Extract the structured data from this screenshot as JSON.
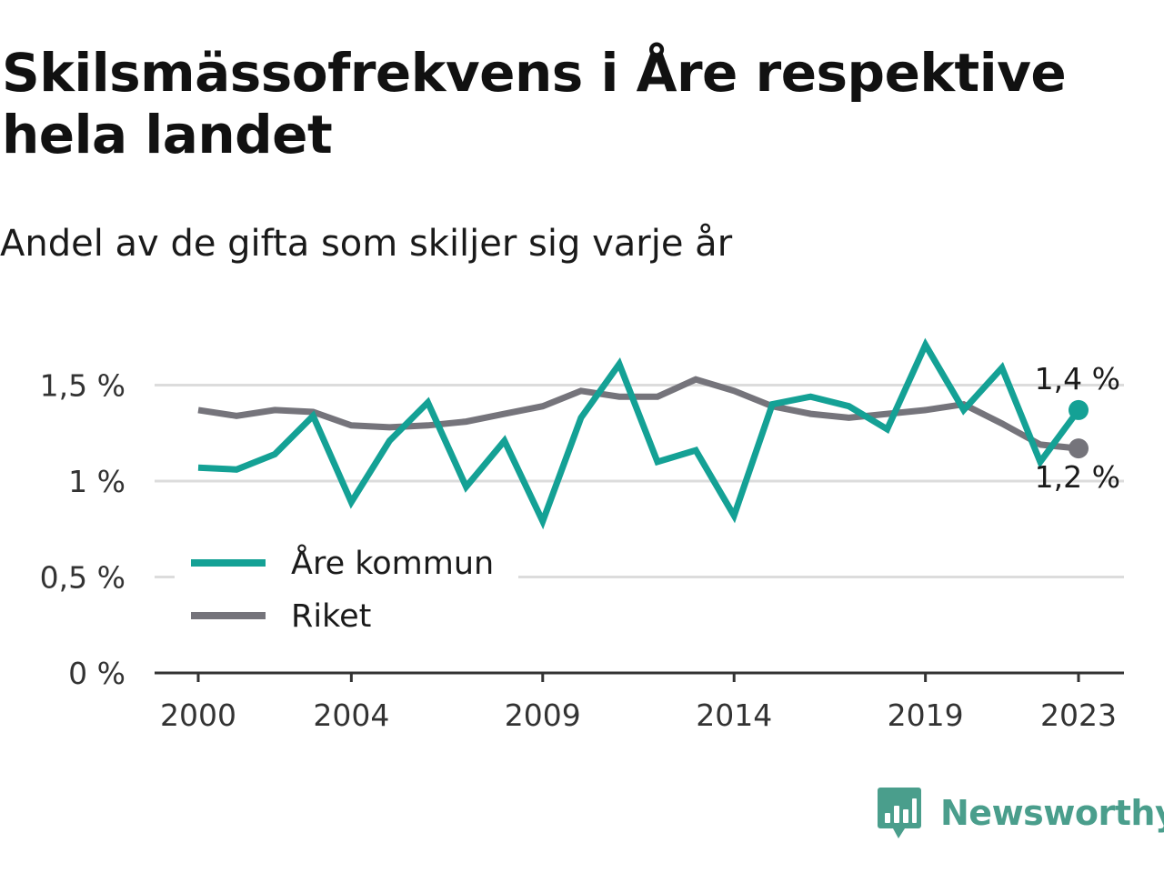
{
  "title": "Skilsmässofrekvens i Åre respektive hela landet",
  "subtitle": "Andel av de gifta som skiljer sig varje år",
  "brand": {
    "name": "Newsworthy",
    "icon": "newsworthy-logo-icon",
    "color": "#4a9e8c"
  },
  "chart_data": {
    "type": "line",
    "x": [
      2000,
      2001,
      2002,
      2003,
      2004,
      2005,
      2006,
      2007,
      2008,
      2009,
      2010,
      2011,
      2012,
      2013,
      2014,
      2015,
      2016,
      2017,
      2018,
      2019,
      2020,
      2021,
      2022,
      2023
    ],
    "x_ticks": [
      2000,
      2004,
      2009,
      2014,
      2019,
      2023
    ],
    "x_tick_labels": [
      "2000",
      "2004",
      "2009",
      "2014",
      "2019",
      "2023"
    ],
    "ylim": [
      0,
      1.7
    ],
    "y_ticks": [
      0,
      0.5,
      1,
      1.5
    ],
    "y_tick_labels": [
      "0 %",
      "0,5 %",
      "1 %",
      "1,5 %"
    ],
    "grid": true,
    "legend_position": "bottom-left",
    "series": [
      {
        "name": "Åre kommun",
        "color": "#14a195",
        "values": [
          1.07,
          1.06,
          1.14,
          1.34,
          0.89,
          1.21,
          1.41,
          0.97,
          1.21,
          0.79,
          1.33,
          1.61,
          1.1,
          1.16,
          0.82,
          1.4,
          1.44,
          1.39,
          1.27,
          1.71,
          1.37,
          1.59,
          1.1,
          1.37
        ],
        "end_label": "1,4 %"
      },
      {
        "name": "Riket",
        "color": "#75747b",
        "values": [
          1.37,
          1.34,
          1.37,
          1.36,
          1.29,
          1.28,
          1.29,
          1.31,
          1.35,
          1.39,
          1.47,
          1.44,
          1.44,
          1.53,
          1.47,
          1.39,
          1.35,
          1.33,
          1.35,
          1.37,
          1.4,
          1.3,
          1.19,
          1.17
        ],
        "end_label": "1,2 %"
      }
    ]
  }
}
